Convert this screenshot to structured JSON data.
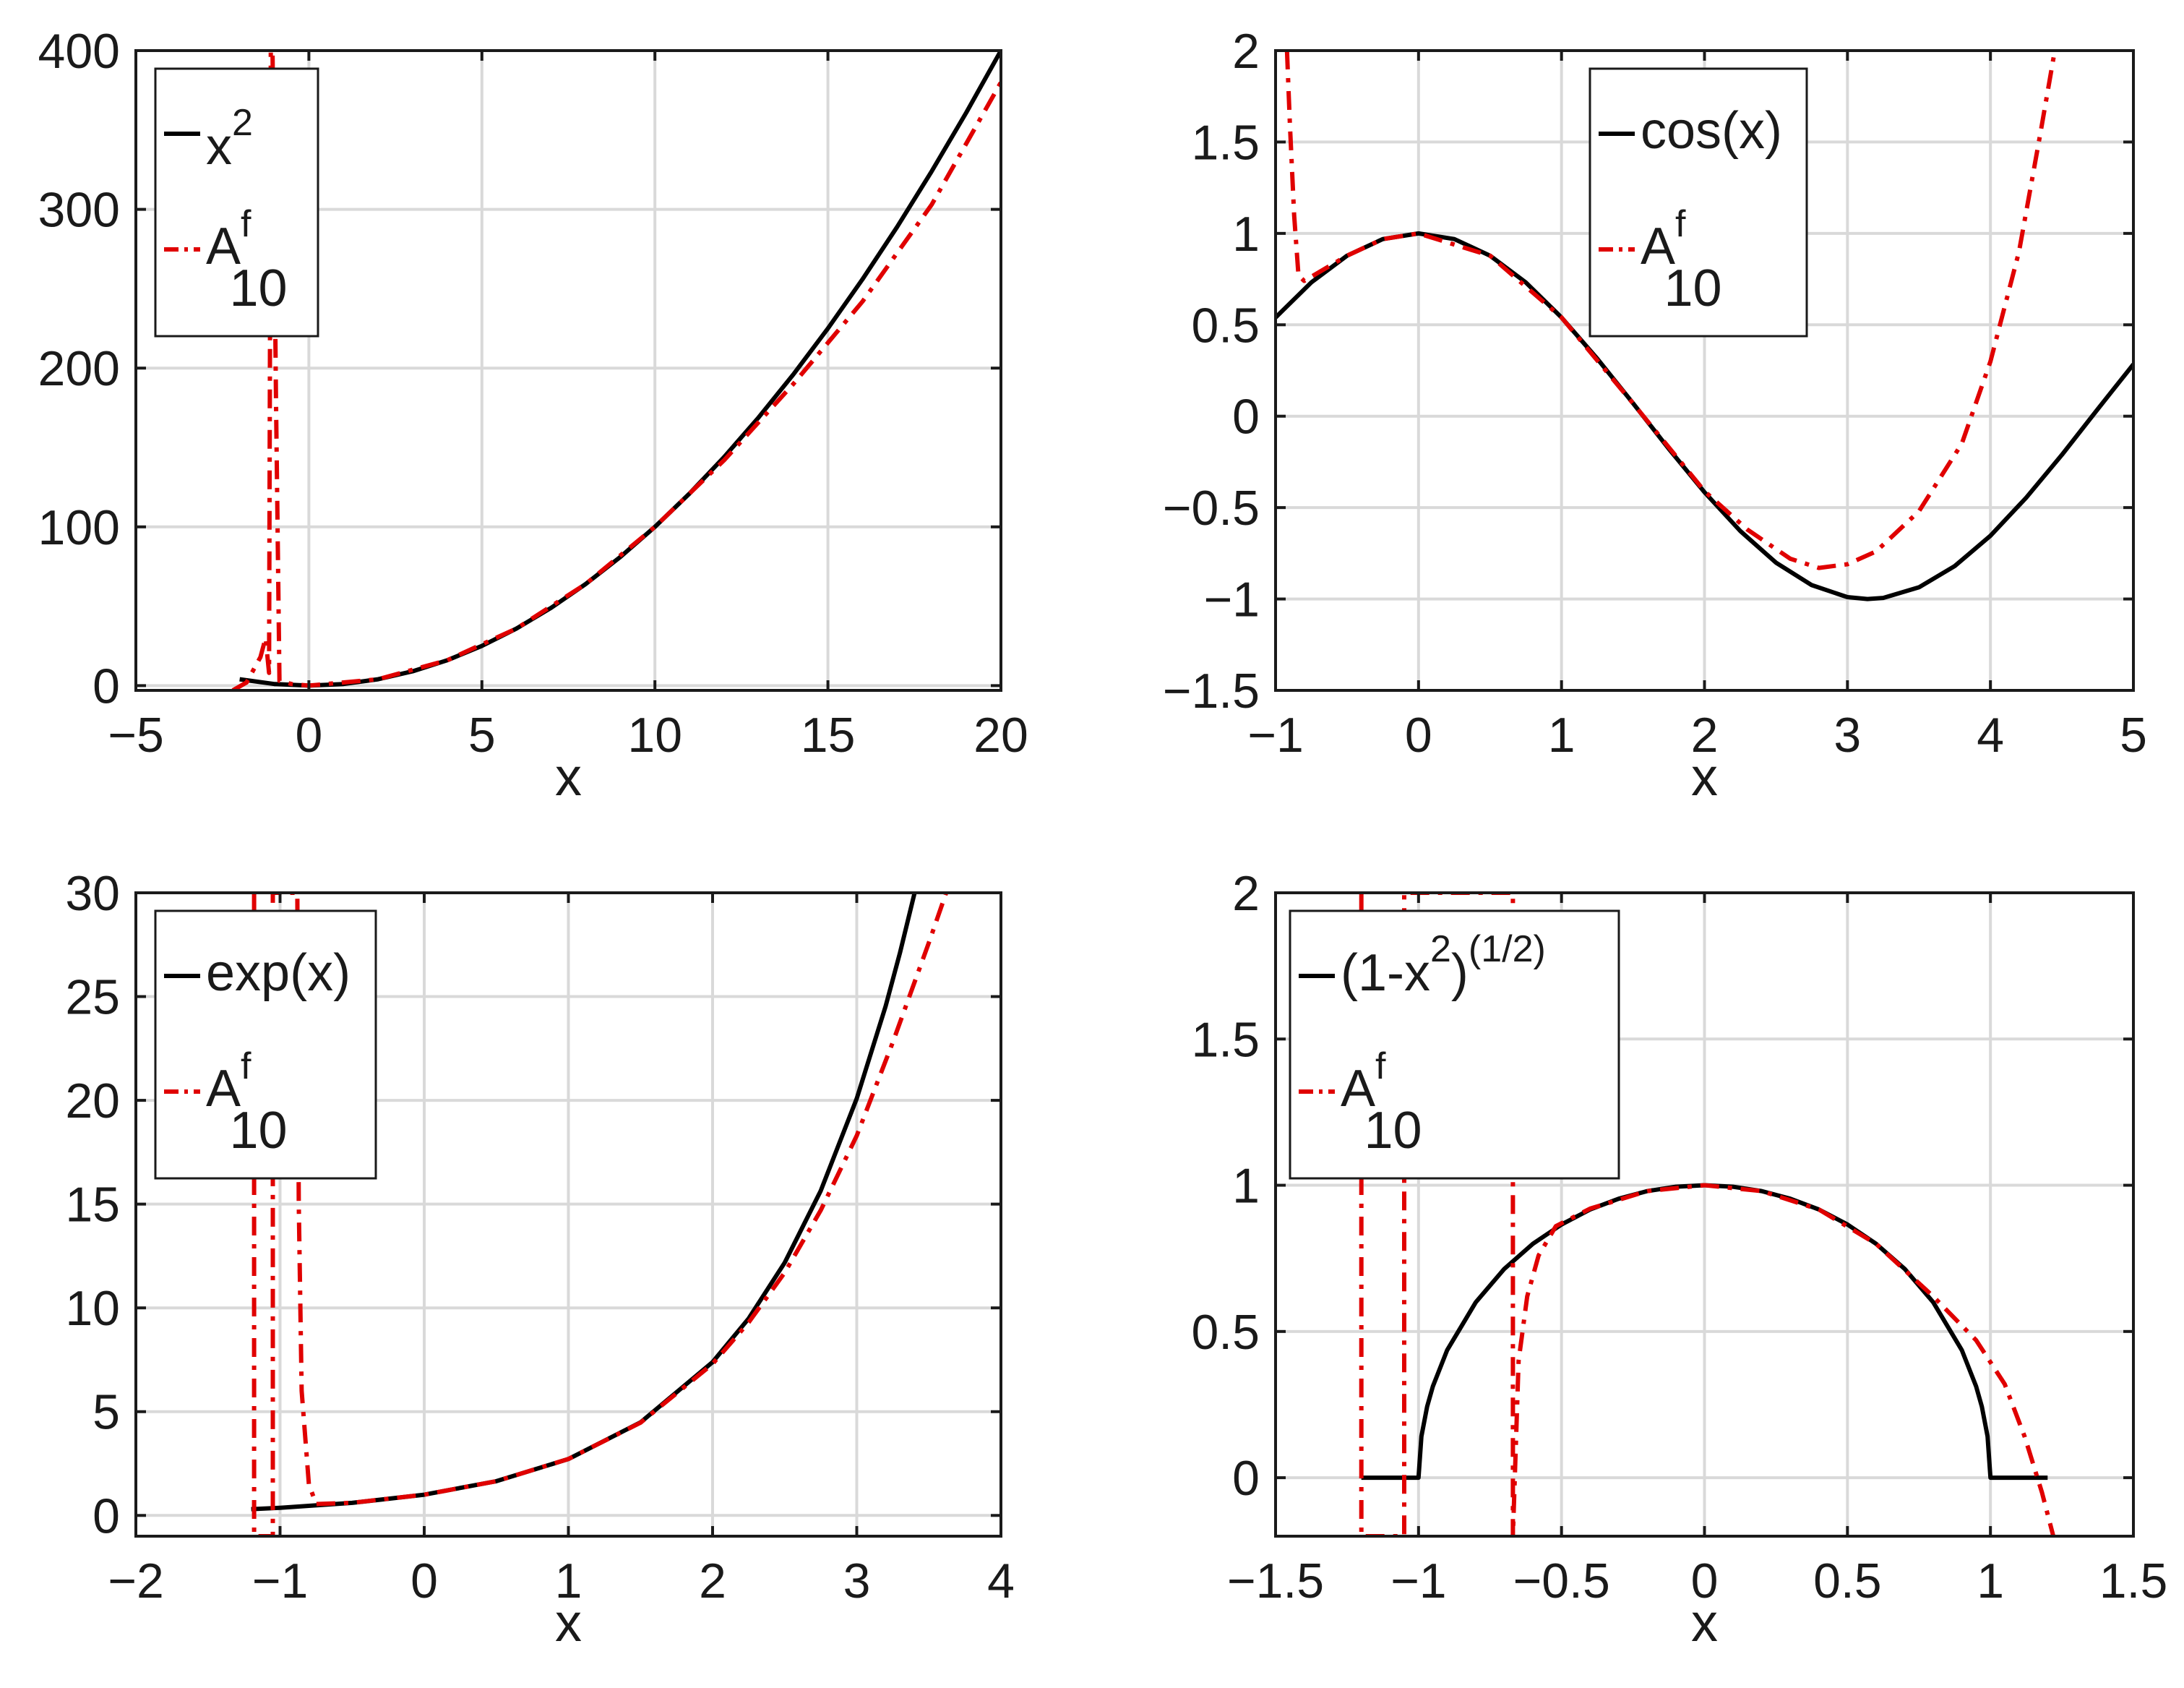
{
  "chart_data": [
    {
      "type": "line",
      "name": "x2",
      "xlabel": "x",
      "xlim": [
        -5,
        20
      ],
      "ylim": [
        -3,
        400
      ],
      "xticks": [
        -5,
        0,
        5,
        10,
        15,
        20
      ],
      "yticks": [
        0,
        100,
        200,
        300,
        400
      ],
      "xtick_labels": [
        "−5",
        "0",
        "5",
        "10",
        "15",
        "20"
      ],
      "ytick_labels": [
        "0",
        "100",
        "200",
        "300",
        "400"
      ],
      "grid": true,
      "legend": {
        "placement": "top-left",
        "entries": [
          {
            "base": "x",
            "sup": "2",
            "sub": "",
            "style": "solid",
            "color": "#000000"
          },
          {
            "base": "A",
            "sup": "f",
            "sub": "10",
            "style": "dashdot",
            "color": "#e00000"
          }
        ]
      },
      "series": [
        {
          "name": "x^2",
          "style": "solid",
          "color": "#000000",
          "points": [
            [
              -2,
              4
            ],
            [
              -1,
              1
            ],
            [
              0,
              0
            ],
            [
              1,
              1
            ],
            [
              2,
              4
            ],
            [
              3,
              9
            ],
            [
              4,
              16
            ],
            [
              5,
              25
            ],
            [
              6,
              36
            ],
            [
              7,
              49
            ],
            [
              8,
              64
            ],
            [
              9,
              81
            ],
            [
              10,
              100
            ],
            [
              11,
              121
            ],
            [
              12,
              144
            ],
            [
              13,
              169
            ],
            [
              14,
              196
            ],
            [
              15,
              225
            ],
            [
              16,
              256
            ],
            [
              17,
              289
            ],
            [
              18,
              324
            ],
            [
              19,
              361
            ],
            [
              20,
              400
            ]
          ]
        },
        {
          "name": "A^f_10",
          "style": "dashdot",
          "color": "#e00000",
          "points": [
            [
              -2.2,
              -3
            ],
            [
              -1.8,
              2
            ],
            [
              -1.4,
              18
            ],
            [
              -1.25,
              30
            ],
            [
              -1.15,
              8
            ],
            [
              -1.1,
              400
            ],
            [
              -1.05,
              400
            ],
            [
              -0.95,
              180
            ],
            [
              -0.85,
              3
            ],
            [
              -0.5,
              1
            ],
            [
              0,
              0
            ],
            [
              2,
              4
            ],
            [
              4,
              16
            ],
            [
              6,
              36
            ],
            [
              8,
              64
            ],
            [
              10,
              100
            ],
            [
              12,
              142
            ],
            [
              14,
              190
            ],
            [
              16,
              242
            ],
            [
              18,
              303
            ],
            [
              20,
              380
            ]
          ]
        }
      ]
    },
    {
      "type": "line",
      "name": "cos",
      "xlabel": "x",
      "xlim": [
        -1,
        5
      ],
      "ylim": [
        -1.5,
        2
      ],
      "xticks": [
        -1,
        0,
        1,
        2,
        3,
        4,
        5
      ],
      "yticks": [
        -1.5,
        -1,
        -0.5,
        0,
        0.5,
        1,
        1.5,
        2
      ],
      "xtick_labels": [
        "−1",
        "0",
        "1",
        "2",
        "3",
        "4",
        "5"
      ],
      "ytick_labels": [
        "−1.5",
        "−1",
        "−0.5",
        "0",
        "0.5",
        "1",
        "1.5",
        "2"
      ],
      "grid": true,
      "legend": {
        "placement": "top-right",
        "entries": [
          {
            "base": "cos(x)",
            "sup": "",
            "sub": "",
            "style": "solid",
            "color": "#000000"
          },
          {
            "base": "A",
            "sup": "f",
            "sub": "10",
            "style": "dashdot",
            "color": "#e00000"
          }
        ]
      },
      "series": [
        {
          "name": "cos(x)",
          "style": "solid",
          "color": "#000000",
          "points": [
            [
              -1,
              0.54
            ],
            [
              -0.75,
              0.732
            ],
            [
              -0.5,
              0.878
            ],
            [
              -0.25,
              0.969
            ],
            [
              0,
              1
            ],
            [
              0.25,
              0.969
            ],
            [
              0.5,
              0.878
            ],
            [
              0.75,
              0.732
            ],
            [
              1,
              0.54
            ],
            [
              1.25,
              0.315
            ],
            [
              1.5,
              0.071
            ],
            [
              1.75,
              -0.178
            ],
            [
              2,
              -0.416
            ],
            [
              2.25,
              -0.628
            ],
            [
              2.5,
              -0.801
            ],
            [
              2.75,
              -0.924
            ],
            [
              3,
              -0.99
            ],
            [
              3.14,
              -1
            ],
            [
              3.25,
              -0.994
            ],
            [
              3.5,
              -0.936
            ],
            [
              3.75,
              -0.82
            ],
            [
              4,
              -0.654
            ],
            [
              4.25,
              -0.446
            ],
            [
              4.5,
              -0.211
            ],
            [
              4.75,
              0.038
            ],
            [
              5,
              0.284
            ]
          ]
        },
        {
          "name": "A^f_10",
          "style": "dashdot",
          "color": "#e00000",
          "points": [
            [
              -0.92,
              2
            ],
            [
              -0.9,
              1.6
            ],
            [
              -0.87,
              1.1
            ],
            [
              -0.84,
              0.77
            ],
            [
              -0.8,
              0.74
            ],
            [
              -0.5,
              0.878
            ],
            [
              -0.25,
              0.969
            ],
            [
              0,
              1
            ],
            [
              0.5,
              0.878
            ],
            [
              1,
              0.54
            ],
            [
              1.5,
              0.07
            ],
            [
              2,
              -0.41
            ],
            [
              2.3,
              -0.62
            ],
            [
              2.6,
              -0.78
            ],
            [
              2.8,
              -0.83
            ],
            [
              3.0,
              -0.81
            ],
            [
              3.2,
              -0.74
            ],
            [
              3.5,
              -0.52
            ],
            [
              3.8,
              -0.15
            ],
            [
              4.0,
              0.3
            ],
            [
              4.2,
              0.9
            ],
            [
              4.35,
              1.55
            ],
            [
              4.45,
              2
            ]
          ]
        }
      ]
    },
    {
      "type": "line",
      "name": "exp",
      "xlabel": "x",
      "xlim": [
        -2,
        4
      ],
      "ylim": [
        -1,
        30
      ],
      "xticks": [
        -2,
        -1,
        0,
        1,
        2,
        3,
        4
      ],
      "yticks": [
        0,
        5,
        10,
        15,
        20,
        25,
        30
      ],
      "xtick_labels": [
        "−2",
        "−1",
        "0",
        "1",
        "2",
        "3",
        "4"
      ],
      "ytick_labels": [
        "0",
        "5",
        "10",
        "15",
        "20",
        "25",
        "30"
      ],
      "grid": true,
      "legend": {
        "placement": "top-left",
        "entries": [
          {
            "base": "exp(x)",
            "sup": "",
            "sub": "",
            "style": "solid",
            "color": "#000000"
          },
          {
            "base": "A",
            "sup": "f",
            "sub": "10",
            "style": "dashdot",
            "color": "#e00000"
          }
        ]
      },
      "series": [
        {
          "name": "exp(x)",
          "style": "solid",
          "color": "#000000",
          "points": [
            [
              -1.2,
              0.301
            ],
            [
              -1,
              0.368
            ],
            [
              -0.5,
              0.607
            ],
            [
              0,
              1
            ],
            [
              0.5,
              1.649
            ],
            [
              1,
              2.718
            ],
            [
              1.5,
              4.482
            ],
            [
              2,
              7.389
            ],
            [
              2.25,
              9.488
            ],
            [
              2.5,
              12.18
            ],
            [
              2.75,
              15.64
            ],
            [
              3,
              20.09
            ],
            [
              3.2,
              24.53
            ],
            [
              3.3,
              27.11
            ],
            [
              3.4,
              29.96
            ]
          ]
        },
        {
          "name": "A^f_10",
          "style": "dashdot",
          "color": "#e00000",
          "points": [
            [
              -1.18,
              30
            ],
            [
              -1.18,
              -1
            ],
            [
              -1.05,
              -1
            ],
            [
              -1.05,
              30
            ],
            [
              -0.88,
              30
            ],
            [
              -0.87,
              15
            ],
            [
              -0.85,
              6
            ],
            [
              -0.8,
              1.5
            ],
            [
              -0.75,
              0.55
            ],
            [
              -0.5,
              0.61
            ],
            [
              0,
              1
            ],
            [
              0.5,
              1.65
            ],
            [
              1,
              2.72
            ],
            [
              1.5,
              4.47
            ],
            [
              2,
              7.3
            ],
            [
              2.25,
              9.3
            ],
            [
              2.5,
              11.7
            ],
            [
              2.75,
              14.7
            ],
            [
              3,
              18.3
            ],
            [
              3.25,
              22.8
            ],
            [
              3.5,
              27.6
            ],
            [
              3.62,
              30
            ]
          ]
        }
      ]
    },
    {
      "type": "line",
      "name": "sqrt",
      "xlabel": "x",
      "xlim": [
        -1.5,
        1.5
      ],
      "ylim": [
        -0.2,
        2
      ],
      "xticks": [
        -1.5,
        -1,
        -0.5,
        0,
        0.5,
        1,
        1.5
      ],
      "yticks": [
        0,
        0.5,
        1,
        1.5,
        2
      ],
      "xtick_labels": [
        "−1.5",
        "−1",
        "−0.5",
        "0",
        "0.5",
        "1",
        "1.5"
      ],
      "ytick_labels": [
        "0",
        "0.5",
        "1",
        "1.5",
        "2"
      ],
      "grid": true,
      "legend": {
        "placement": "top-left",
        "entries": [
          {
            "base": "(1-x",
            "sup": "2",
            "sub": "",
            "tail": ")",
            "tailsup": "(1/2)",
            "style": "solid",
            "color": "#000000"
          },
          {
            "base": "A",
            "sup": "f",
            "sub": "10",
            "style": "dashdot",
            "color": "#e00000"
          }
        ]
      },
      "series": [
        {
          "name": "(1-x^2)^(1/2)",
          "style": "solid",
          "color": "#000000",
          "points": [
            [
              -1.2,
              0
            ],
            [
              -1,
              0
            ],
            [
              -0.99,
              0.141
            ],
            [
              -0.97,
              0.243
            ],
            [
              -0.95,
              0.312
            ],
            [
              -0.9,
              0.436
            ],
            [
              -0.8,
              0.6
            ],
            [
              -0.7,
              0.714
            ],
            [
              -0.6,
              0.8
            ],
            [
              -0.5,
              0.866
            ],
            [
              -0.4,
              0.917
            ],
            [
              -0.3,
              0.954
            ],
            [
              -0.2,
              0.98
            ],
            [
              -0.1,
              0.995
            ],
            [
              0,
              1
            ],
            [
              0.1,
              0.995
            ],
            [
              0.2,
              0.98
            ],
            [
              0.3,
              0.954
            ],
            [
              0.4,
              0.917
            ],
            [
              0.5,
              0.866
            ],
            [
              0.6,
              0.8
            ],
            [
              0.7,
              0.714
            ],
            [
              0.8,
              0.6
            ],
            [
              0.9,
              0.436
            ],
            [
              0.95,
              0.312
            ],
            [
              0.97,
              0.243
            ],
            [
              0.99,
              0.141
            ],
            [
              1,
              0
            ],
            [
              1.2,
              0
            ]
          ]
        },
        {
          "name": "A^f_10",
          "style": "dashdot",
          "color": "#e00000",
          "points": [
            [
              -1.2,
              2
            ],
            [
              -1.2,
              -0.2
            ],
            [
              -1.05,
              -0.2
            ],
            [
              -1.05,
              2
            ],
            [
              -0.67,
              2
            ],
            [
              -0.67,
              -0.2
            ],
            [
              -0.65,
              0.4
            ],
            [
              -0.62,
              0.62
            ],
            [
              -0.58,
              0.76
            ],
            [
              -0.52,
              0.86
            ],
            [
              -0.4,
              0.92
            ],
            [
              -0.2,
              0.98
            ],
            [
              0,
              1
            ],
            [
              0.2,
              0.98
            ],
            [
              0.4,
              0.917
            ],
            [
              0.6,
              0.8
            ],
            [
              0.8,
              0.62
            ],
            [
              0.95,
              0.47
            ],
            [
              1.05,
              0.32
            ],
            [
              1.12,
              0.14
            ],
            [
              1.18,
              -0.05
            ],
            [
              1.22,
              -0.2
            ]
          ]
        }
      ]
    }
  ]
}
